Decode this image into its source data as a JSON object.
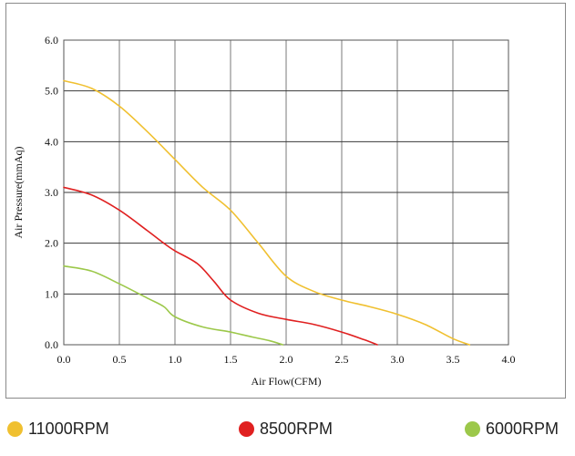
{
  "chart_data": {
    "type": "line",
    "xlabel": "Air Flow(CFM)",
    "ylabel": "Air Pressure(mmAq)",
    "xlim": [
      0,
      4.0
    ],
    "ylim": [
      0,
      6.0
    ],
    "x_ticks": [
      "0.0",
      "0.5",
      "1.0",
      "1.5",
      "2.0",
      "2.5",
      "3.0",
      "3.5",
      "4.0"
    ],
    "y_ticks": [
      "0.0",
      "1.0",
      "2.0",
      "3.0",
      "4.0",
      "5.0",
      "6.0"
    ],
    "grid": true,
    "legend_position": "bottom",
    "series": [
      {
        "name": "11000RPM",
        "color": "#f0c030",
        "points": [
          [
            0.0,
            5.2
          ],
          [
            0.25,
            5.05
          ],
          [
            0.5,
            4.7
          ],
          [
            0.75,
            4.2
          ],
          [
            1.0,
            3.65
          ],
          [
            1.25,
            3.1
          ],
          [
            1.5,
            2.65
          ],
          [
            1.75,
            2.0
          ],
          [
            2.0,
            1.35
          ],
          [
            2.25,
            1.05
          ],
          [
            2.5,
            0.88
          ],
          [
            2.75,
            0.75
          ],
          [
            3.0,
            0.6
          ],
          [
            3.25,
            0.4
          ],
          [
            3.5,
            0.12
          ],
          [
            3.65,
            0.0
          ]
        ]
      },
      {
        "name": "8500RPM",
        "color": "#e02020",
        "points": [
          [
            0.0,
            3.1
          ],
          [
            0.25,
            2.95
          ],
          [
            0.5,
            2.65
          ],
          [
            0.75,
            2.25
          ],
          [
            0.9,
            2.0
          ],
          [
            1.0,
            1.85
          ],
          [
            1.2,
            1.6
          ],
          [
            1.35,
            1.25
          ],
          [
            1.5,
            0.88
          ],
          [
            1.75,
            0.62
          ],
          [
            2.0,
            0.5
          ],
          [
            2.25,
            0.4
          ],
          [
            2.5,
            0.25
          ],
          [
            2.7,
            0.1
          ],
          [
            2.82,
            0.0
          ]
        ]
      },
      {
        "name": "6000RPM",
        "color": "#9cc84a",
        "points": [
          [
            0.0,
            1.55
          ],
          [
            0.25,
            1.45
          ],
          [
            0.5,
            1.2
          ],
          [
            0.75,
            0.92
          ],
          [
            0.9,
            0.75
          ],
          [
            1.0,
            0.55
          ],
          [
            1.25,
            0.35
          ],
          [
            1.5,
            0.25
          ],
          [
            1.7,
            0.15
          ],
          [
            1.85,
            0.08
          ],
          [
            1.97,
            0.0
          ]
        ]
      }
    ]
  }
}
